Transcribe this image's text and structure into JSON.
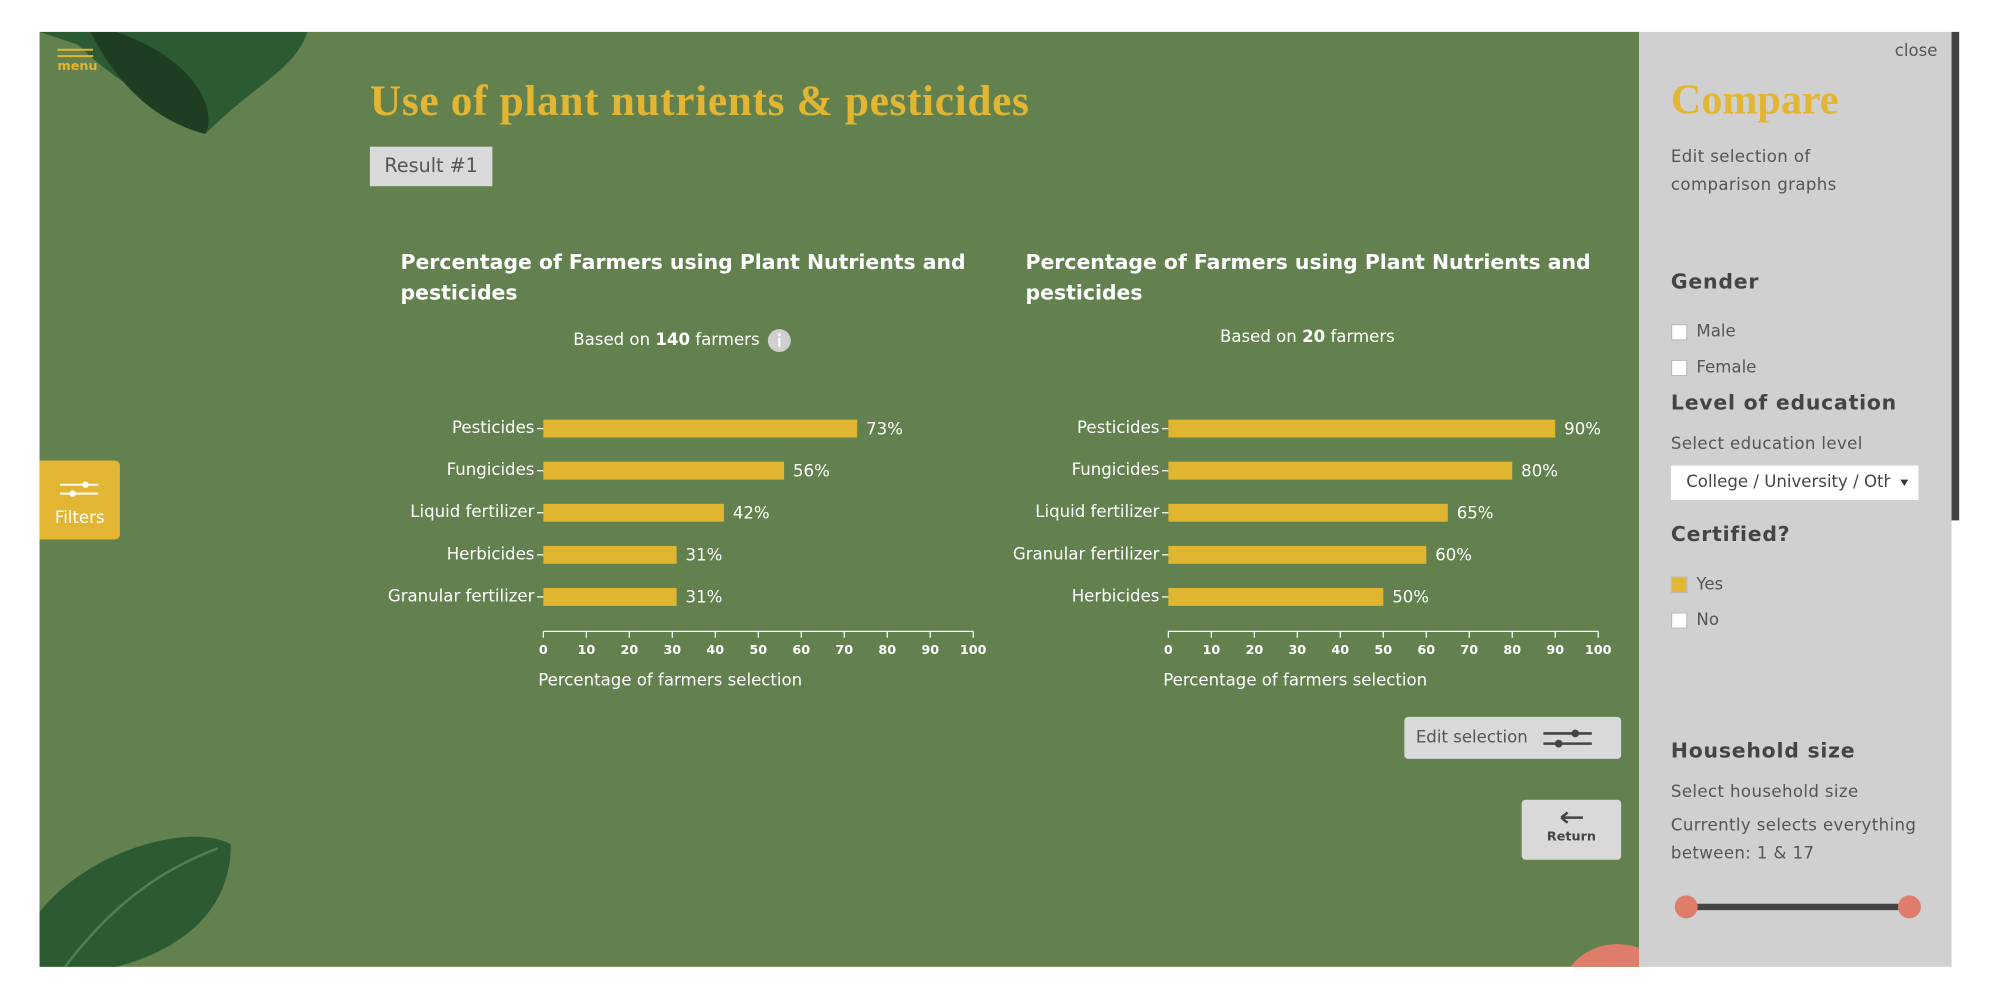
{
  "menu": "menu",
  "title": "Use of plant nutrients & pesticides",
  "result_label": "Result #1",
  "filters_button": "Filters",
  "edit_selection": "Edit selection",
  "return_button": "Return",
  "chart_data": [
    {
      "type": "bar",
      "orientation": "horizontal",
      "title": "Percentage of Farmers using Plant Nutrients and pesticides",
      "subtitle": {
        "prefix": "Based on",
        "count": 140,
        "suffix": "farmers"
      },
      "categories": [
        "Pesticides",
        "Fungicides",
        "Liquid fertilizer",
        "Herbicides",
        "Granular fertilizer"
      ],
      "values": [
        73,
        56,
        42,
        31,
        31
      ],
      "value_labels": [
        "73%",
        "56%",
        "42%",
        "31%",
        "31%"
      ],
      "color": "#e0b631",
      "xlim": [
        0,
        100
      ],
      "xticks": [
        0,
        10,
        20,
        30,
        40,
        50,
        60,
        70,
        80,
        90,
        100
      ],
      "xlabel": "Percentage of farmers selection"
    },
    {
      "type": "bar",
      "orientation": "horizontal",
      "title": "Percentage of Farmers using Plant Nutrients and pesticides",
      "subtitle": {
        "prefix": "Based on",
        "count": 20,
        "suffix": "farmers"
      },
      "categories": [
        "Pesticides",
        "Fungicides",
        "Liquid fertilizer",
        "Granular fertilizer",
        "Herbicides"
      ],
      "values": [
        90,
        80,
        65,
        60,
        50
      ],
      "value_labels": [
        "90%",
        "80%",
        "65%",
        "60%",
        "50%"
      ],
      "color": "#e0b631",
      "xlim": [
        0,
        100
      ],
      "xticks": [
        0,
        10,
        20,
        30,
        40,
        50,
        60,
        70,
        80,
        90,
        100
      ],
      "xlabel": "Percentage of farmers selection"
    }
  ],
  "compare": {
    "close": "close",
    "title": "Compare",
    "description": "Edit selection of comparison graphs",
    "gender": {
      "heading": "Gender",
      "options": [
        "Male",
        "Female"
      ]
    },
    "education": {
      "heading": "Level of education",
      "label": "Select education level",
      "selected": "College / University / Other"
    },
    "certified": {
      "heading": "Certified?",
      "options": [
        "Yes",
        "No"
      ]
    },
    "household": {
      "heading": "Household size",
      "label": "Select household size",
      "status": "Currently selects everything between: 1 & 17"
    }
  }
}
